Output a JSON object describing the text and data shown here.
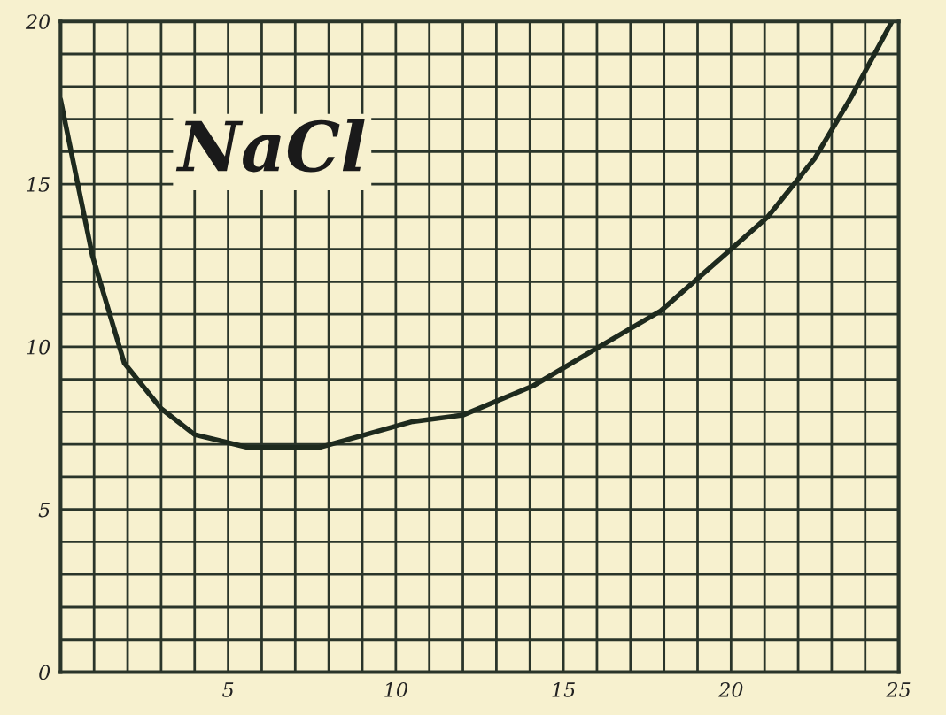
{
  "chart_data": {
    "type": "line",
    "annotations": [
      "NaCl"
    ],
    "x": [
      0,
      0.95,
      1.9,
      3.0,
      4.0,
      5.6,
      7.7,
      10.5,
      12.0,
      14.1,
      15.9,
      17.9,
      20.0,
      21.1,
      22.5,
      23.6,
      24.8
    ],
    "series": [
      {
        "color": "#1e2a1e",
        "values": [
          17.6,
          12.8,
          9.5,
          8.1,
          7.3,
          6.9,
          6.9,
          7.7,
          7.9,
          8.8,
          9.9,
          11.1,
          13.0,
          14.0,
          15.8,
          17.7,
          20.0
        ]
      }
    ],
    "xlim": [
      0,
      25
    ],
    "ylim": [
      0,
      20
    ],
    "xticks": [
      {
        "value": 0,
        "label": null
      },
      {
        "value": 1,
        "label": null
      },
      {
        "value": 2,
        "label": null
      },
      {
        "value": 3,
        "label": null
      },
      {
        "value": 4,
        "label": null
      },
      5,
      {
        "value": 6,
        "label": null
      },
      {
        "value": 7,
        "label": null
      },
      {
        "value": 8,
        "label": null
      },
      {
        "value": 9,
        "label": null
      },
      10,
      {
        "value": 11,
        "label": null
      },
      {
        "value": 12,
        "label": null
      },
      {
        "value": 13,
        "label": null
      },
      {
        "value": 14,
        "label": null
      },
      15,
      {
        "value": 16,
        "label": null
      },
      {
        "value": 17,
        "label": null
      },
      {
        "value": 18,
        "label": null
      },
      {
        "value": 19,
        "label": null
      },
      20,
      {
        "value": 21,
        "label": null
      },
      {
        "value": 22,
        "label": null
      },
      {
        "value": 23,
        "label": null
      },
      {
        "value": 24,
        "label": null
      },
      25
    ],
    "yticks": [
      0,
      {
        "value": 1,
        "label": null
      },
      {
        "value": 2,
        "label": null
      },
      {
        "value": 3,
        "label": null
      },
      {
        "value": 4,
        "label": null
      },
      5,
      {
        "value": 6,
        "label": null
      },
      {
        "value": 7,
        "label": null
      },
      {
        "value": 8,
        "label": null
      },
      {
        "value": 9,
        "label": null
      },
      10,
      {
        "value": 11,
        "label": null
      },
      {
        "value": 12,
        "label": null
      },
      {
        "value": 13,
        "label": null
      },
      {
        "value": 14,
        "label": null
      },
      15,
      {
        "value": 16,
        "label": null
      },
      {
        "value": 17,
        "label": null
      },
      {
        "value": 18,
        "label": null
      },
      {
        "value": 19,
        "label": null
      },
      20
    ],
    "grid": true
  }
}
